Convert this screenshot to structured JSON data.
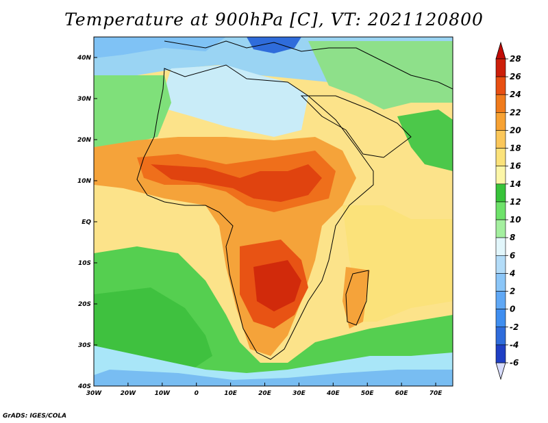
{
  "title": "Temperature at 900hPa [C], VT: 2021120800",
  "credit": "GrADS: IGES/COLA",
  "map": {
    "lon_range": [
      -30,
      75
    ],
    "lat_range": [
      -40,
      45
    ],
    "lon_ticks": [
      "30W",
      "20W",
      "10W",
      "0",
      "10E",
      "20E",
      "30E",
      "40E",
      "50E",
      "60E",
      "70E"
    ],
    "lon_tick_values": [
      -30,
      -20,
      -10,
      0,
      10,
      20,
      30,
      40,
      50,
      60,
      70
    ],
    "lat_ticks": [
      "40S",
      "30S",
      "20S",
      "10S",
      "EQ",
      "10N",
      "20N",
      "30N",
      "40N"
    ],
    "lat_tick_values": [
      -40,
      -30,
      -20,
      -10,
      0,
      10,
      20,
      30,
      40
    ]
  },
  "colorbar": {
    "labels": [
      "-6",
      "-4",
      "-2",
      "0",
      "2",
      "4",
      "6",
      "8",
      "10",
      "12",
      "14",
      "16",
      "18",
      "20",
      "22",
      "24",
      "26",
      "28"
    ],
    "colors": [
      "#0b1675",
      "#1f3fc4",
      "#2f6cdb",
      "#3f8ef0",
      "#60a8f5",
      "#8bc6f8",
      "#b3dcf8",
      "#e2f6fb",
      "#a4ef9f",
      "#6ee26a",
      "#38c33a",
      "#fcf6a8",
      "#fbe27a",
      "#fbc75a",
      "#f7a233",
      "#f07b1c",
      "#e84f12",
      "#cc1f0a"
    ],
    "bottom_color": "#d7dcfc",
    "top_color": "#c10c07"
  }
}
